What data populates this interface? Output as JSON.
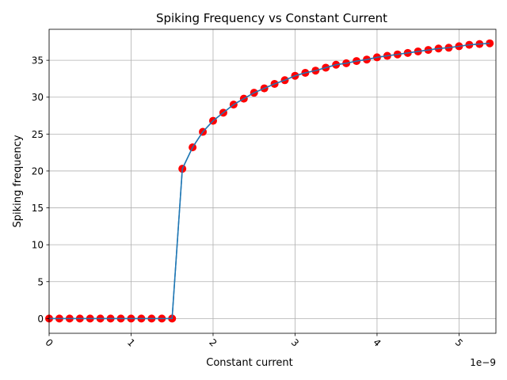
{
  "chart_data": {
    "type": "scatter",
    "title": "Spiking Frequency vs Constant Current",
    "xlabel": "Constant current",
    "ylabel": "Spiking frequency",
    "x_offset_label": "1e−9",
    "x_scale_exponent": -9,
    "xlim": [
      0,
      5.45e-09
    ],
    "ylim": [
      -2,
      39.2
    ],
    "xticks": [
      0,
      1e-09,
      2e-09,
      3e-09,
      4e-09,
      5e-09
    ],
    "xtick_labels": [
      "0",
      "1",
      "2",
      "3",
      "4",
      "5"
    ],
    "yticks": [
      0,
      5,
      10,
      15,
      20,
      25,
      30,
      35
    ],
    "ytick_labels": [
      "0",
      "5",
      "10",
      "15",
      "20",
      "25",
      "30",
      "35"
    ],
    "grid": true,
    "x_tick_rotation_deg": 45,
    "line_color": "#1f77b4",
    "marker_color": "#ff0000",
    "x": [
      0,
      1.25e-10,
      2.5e-10,
      3.75e-10,
      5e-10,
      6.25e-10,
      7.5e-10,
      8.75e-10,
      1e-09,
      1.125e-09,
      1.25e-09,
      1.375e-09,
      1.5e-09,
      1.625e-09,
      1.75e-09,
      1.875e-09,
      2e-09,
      2.125e-09,
      2.25e-09,
      2.375e-09,
      2.5e-09,
      2.625e-09,
      2.75e-09,
      2.875e-09,
      3e-09,
      3.125e-09,
      3.25e-09,
      3.375e-09,
      3.5e-09,
      3.625e-09,
      3.75e-09,
      3.875e-09,
      4e-09,
      4.125e-09,
      4.25e-09,
      4.375e-09,
      4.5e-09,
      4.625e-09,
      4.75e-09,
      4.875e-09,
      5e-09,
      5.125e-09,
      5.25e-09,
      5.375e-09
    ],
    "y": [
      0,
      0,
      0,
      0,
      0,
      0,
      0,
      0,
      0,
      0,
      0,
      0,
      0,
      20.3,
      23.2,
      25.3,
      26.8,
      27.9,
      29.0,
      29.8,
      30.6,
      31.2,
      31.8,
      32.3,
      32.9,
      33.3,
      33.6,
      34.0,
      34.4,
      34.6,
      34.9,
      35.1,
      35.4,
      35.6,
      35.8,
      36.0,
      36.2,
      36.4,
      36.6,
      36.7,
      36.9,
      37.1,
      37.2,
      37.3
    ]
  }
}
